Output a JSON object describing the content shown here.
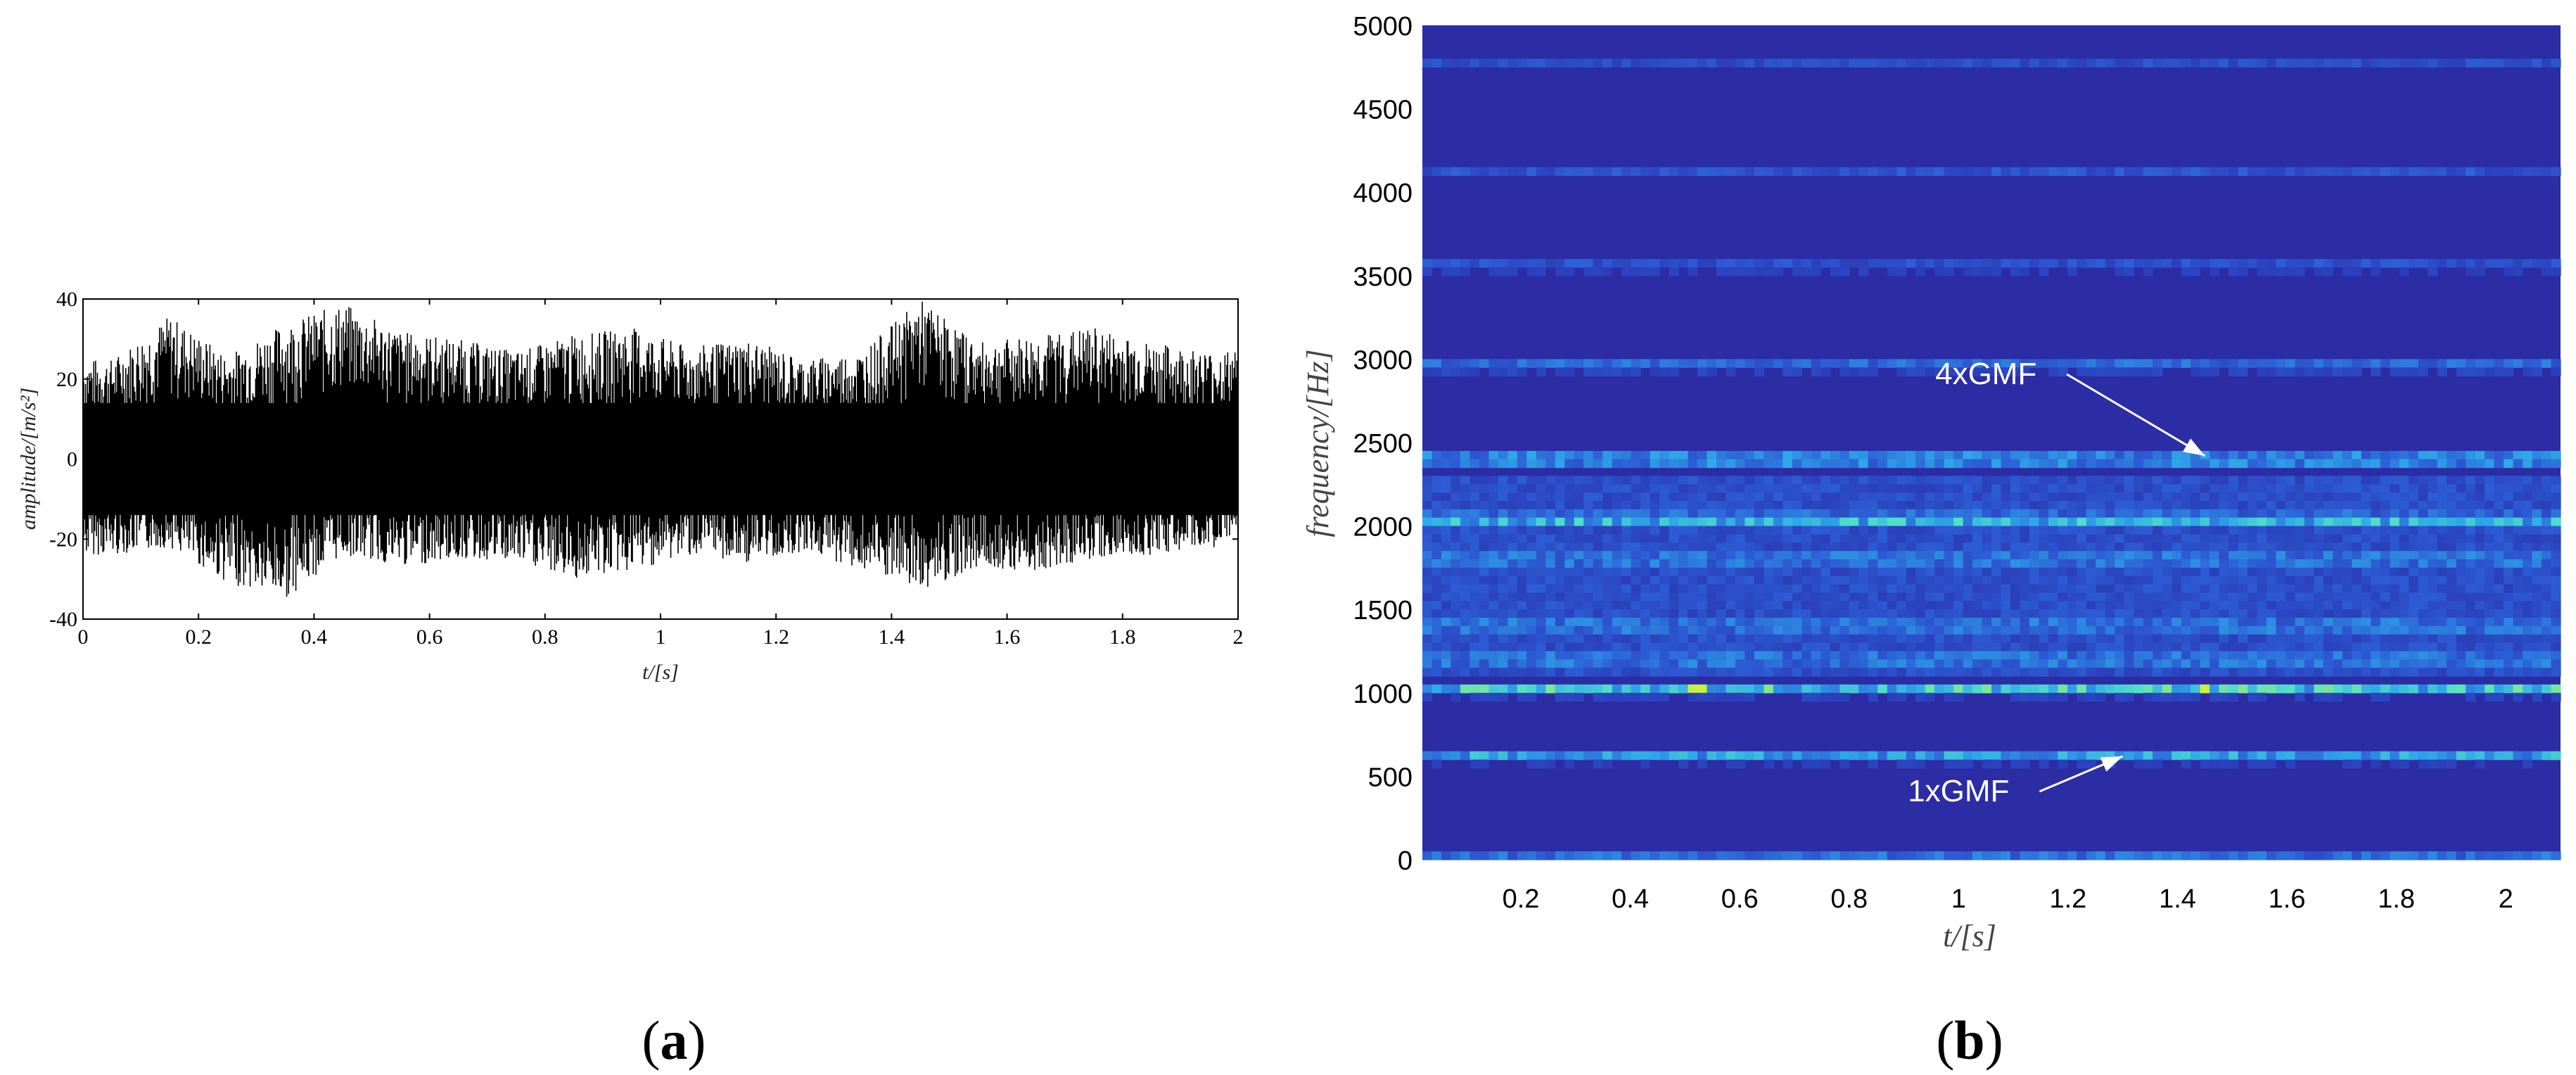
{
  "chart_data": [
    {
      "id": "a",
      "type": "line",
      "panel_label": {
        "open": "(",
        "letter": "a",
        "close": ")"
      },
      "xlabel": "t/[s]",
      "ylabel": "amplitude/[m/s²]",
      "xlim": [
        0,
        2
      ],
      "ylim": [
        -40,
        40
      ],
      "x_ticks": [
        "0",
        "0.2",
        "0.4",
        "0.6",
        "0.8",
        "1",
        "1.2",
        "1.4",
        "1.6",
        "1.8",
        "2"
      ],
      "y_ticks": [
        "40",
        "20",
        "0",
        "-20",
        "-40"
      ],
      "grid": false,
      "series": [
        {
          "color": "#000000",
          "description_values": "dense vibration signal, envelope max/min per 0.1 s",
          "x": [
            0.05,
            0.15,
            0.25,
            0.35,
            0.45,
            0.55,
            0.65,
            0.75,
            0.85,
            0.95,
            1.05,
            1.15,
            1.25,
            1.35,
            1.45,
            1.55,
            1.65,
            1.75,
            1.85,
            1.95
          ],
          "upper": [
            25,
            36,
            26,
            34,
            39,
            32,
            30,
            27,
            31,
            33,
            28,
            30,
            25,
            27,
            40,
            29,
            31,
            33,
            29,
            27
          ],
          "lower": [
            -24,
            -22,
            -31,
            -35,
            -24,
            -27,
            -25,
            -26,
            -30,
            -28,
            -24,
            -26,
            -23,
            -28,
            -33,
            -27,
            -28,
            -25,
            -24,
            -22
          ]
        }
      ]
    },
    {
      "id": "b",
      "type": "heatmap",
      "panel_label": {
        "open": "(",
        "letter": "b",
        "close": ")"
      },
      "xlabel": "t/[s]",
      "ylabel": "frequency/[Hz]",
      "xlim": [
        0.02,
        2.1
      ],
      "ylim": [
        0,
        5000
      ],
      "x_ticks": [
        "0.2",
        "0.4",
        "0.6",
        "0.8",
        "1",
        "1.2",
        "1.4",
        "1.6",
        "1.8",
        "2"
      ],
      "y_ticks": [
        "5000",
        "4500",
        "4000",
        "3500",
        "3000",
        "2500",
        "2000",
        "1500",
        "1000",
        "500",
        "0"
      ],
      "colormap": [
        "#2a2aa8",
        "#2c5fd6",
        "#2ea8e8",
        "#4fe0c8",
        "#c8f040"
      ],
      "background_color": "#2c2ca4",
      "bands": [
        {
          "frequency": 20,
          "intensity": 0.25
        },
        {
          "frequency": 620,
          "intensity": 0.45
        },
        {
          "frequency": 1020,
          "intensity": 0.6
        },
        {
          "frequency": 1200,
          "intensity": 0.3
        },
        {
          "frequency": 1400,
          "intensity": 0.3
        },
        {
          "frequency": 1800,
          "intensity": 0.3
        },
        {
          "frequency": 2040,
          "intensity": 0.5
        },
        {
          "frequency": 2400,
          "intensity": 0.7
        },
        {
          "frequency": 2960,
          "intensity": 0.3
        },
        {
          "frequency": 3560,
          "intensity": 0.18
        },
        {
          "frequency": 4120,
          "intensity": 0.15
        },
        {
          "frequency": 4780,
          "intensity": 0.12
        }
      ],
      "hot_spots": [
        {
          "t": 0.52,
          "frequency": 1020
        },
        {
          "t": 1.45,
          "frequency": 1020
        }
      ],
      "annotations": [
        {
          "text": "4xGMF",
          "text_t": 1.05,
          "text_f": 2850,
          "arrow_to_t": 1.45,
          "arrow_to_f": 2420
        },
        {
          "text": "1xGMF",
          "text_t": 1.0,
          "text_f": 350,
          "arrow_to_t": 1.3,
          "arrow_to_f": 620
        }
      ]
    }
  ]
}
